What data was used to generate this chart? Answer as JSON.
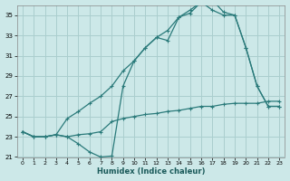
{
  "xlabel": "Humidex (Indice chaleur)",
  "bg_color": "#cce8e8",
  "grid_color": "#aacece",
  "line_color": "#2a7a7a",
  "xlim": [
    -0.5,
    23.5
  ],
  "ylim": [
    21,
    36
  ],
  "yticks": [
    21,
    23,
    25,
    27,
    29,
    31,
    33,
    35
  ],
  "xticks": [
    0,
    1,
    2,
    3,
    4,
    5,
    6,
    7,
    8,
    9,
    10,
    11,
    12,
    13,
    14,
    15,
    16,
    17,
    18,
    19,
    20,
    21,
    22,
    23
  ],
  "series1_x": [
    0,
    1,
    2,
    3,
    4,
    5,
    6,
    7,
    8,
    9,
    10,
    11,
    12,
    13,
    14,
    15,
    16,
    17,
    18,
    19,
    20,
    21,
    22,
    23
  ],
  "series1_y": [
    23.5,
    23.0,
    23.0,
    23.2,
    23.0,
    22.3,
    21.5,
    21.0,
    21.1,
    28.0,
    30.5,
    31.8,
    32.8,
    32.5,
    34.8,
    35.2,
    36.3,
    36.5,
    35.3,
    35.0,
    31.8,
    28.0,
    26.0,
    26.0
  ],
  "series2_x": [
    0,
    1,
    2,
    3,
    4,
    5,
    6,
    7,
    8,
    9,
    10,
    11,
    12,
    13,
    14,
    15,
    16,
    17,
    18,
    19,
    20,
    21,
    22,
    23
  ],
  "series2_y": [
    23.5,
    23.0,
    23.0,
    23.2,
    24.8,
    25.5,
    26.3,
    27.0,
    28.0,
    29.5,
    30.5,
    31.8,
    32.8,
    33.5,
    34.8,
    35.5,
    36.3,
    35.5,
    35.0,
    35.0,
    31.8,
    28.0,
    26.0,
    26.0
  ],
  "series3_x": [
    0,
    1,
    2,
    3,
    4,
    5,
    6,
    7,
    8,
    9,
    10,
    11,
    12,
    13,
    14,
    15,
    16,
    17,
    18,
    19,
    20,
    21,
    22,
    23
  ],
  "series3_y": [
    23.5,
    23.0,
    23.0,
    23.2,
    23.0,
    23.2,
    23.3,
    23.5,
    24.5,
    24.8,
    25.0,
    25.2,
    25.3,
    25.5,
    25.6,
    25.8,
    26.0,
    26.0,
    26.2,
    26.3,
    26.3,
    26.3,
    26.5,
    26.5
  ]
}
